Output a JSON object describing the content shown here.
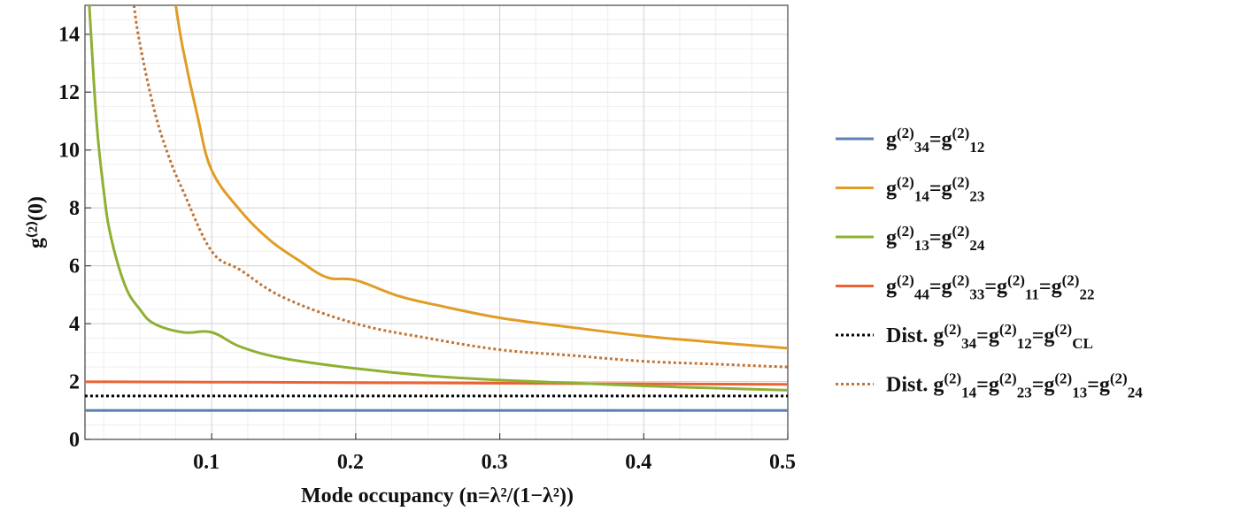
{
  "chart_data": {
    "type": "line",
    "title": "",
    "xlabel": "Mode occupancy (n=λ²/(1−λ²))",
    "ylabel": "g⁽²⁾(0)",
    "xlim": [
      0.012,
      0.5
    ],
    "ylim": [
      0,
      15
    ],
    "x_ticks": [
      {
        "value": 0.1,
        "label": "0.1"
      },
      {
        "value": 0.2,
        "label": "0.2"
      },
      {
        "value": 0.3,
        "label": "0.3"
      },
      {
        "value": 0.4,
        "label": "0.4"
      },
      {
        "value": 0.5,
        "label": "0.5"
      }
    ],
    "y_ticks": [
      {
        "value": 0,
        "label": "0"
      },
      {
        "value": 2,
        "label": "2"
      },
      {
        "value": 4,
        "label": "4"
      },
      {
        "value": 6,
        "label": "6"
      },
      {
        "value": 8,
        "label": "8"
      },
      {
        "value": 10,
        "label": "10"
      },
      {
        "value": 12,
        "label": "12"
      },
      {
        "value": 14,
        "label": "14"
      }
    ],
    "grid": true,
    "legend_position": "right",
    "series": [
      {
        "name": "g(2)34=g(2)12",
        "color": "#5e81b5",
        "dash": "solid",
        "x": [
          0.012,
          0.1,
          0.2,
          0.3,
          0.4,
          0.5
        ],
        "y": [
          1.0,
          1.0,
          1.0,
          1.0,
          1.0,
          1.0
        ]
      },
      {
        "name": "g(2)14=g(2)23",
        "color": "#e19c24",
        "dash": "solid",
        "x": [
          0.075,
          0.08,
          0.09,
          0.1,
          0.12,
          0.14,
          0.16,
          0.18,
          0.2,
          0.23,
          0.26,
          0.3,
          0.35,
          0.4,
          0.45,
          0.5
        ],
        "y": [
          15.0,
          13.5,
          11.2,
          9.3,
          7.9,
          6.9,
          6.2,
          5.6,
          5.5,
          4.95,
          4.6,
          4.2,
          3.87,
          3.57,
          3.35,
          3.15
        ]
      },
      {
        "name": "g(2)13=g(2)24",
        "color": "#8fb032",
        "dash": "solid",
        "x": [
          0.015,
          0.02,
          0.025,
          0.03,
          0.04,
          0.05,
          0.06,
          0.08,
          0.1,
          0.12,
          0.15,
          0.2,
          0.25,
          0.3,
          0.35,
          0.4,
          0.45,
          0.5
        ],
        "y": [
          15.0,
          11.0,
          8.6,
          7.0,
          5.3,
          4.5,
          4.0,
          3.7,
          3.7,
          3.2,
          2.8,
          2.45,
          2.2,
          2.05,
          1.95,
          1.85,
          1.77,
          1.7
        ]
      },
      {
        "name": "g(2)44=g(2)33=g(2)11=g(2)22",
        "color": "#eb6235",
        "dash": "solid",
        "x": [
          0.012,
          0.1,
          0.2,
          0.3,
          0.4,
          0.5
        ],
        "y": [
          1.99,
          1.98,
          1.96,
          1.94,
          1.92,
          1.9
        ]
      },
      {
        "name": "Dist. g(2)34=g(2)12=g(2)CL",
        "color": "#000000",
        "dash": "dotted",
        "x": [
          0.012,
          0.1,
          0.2,
          0.3,
          0.4,
          0.5
        ],
        "y": [
          1.5,
          1.5,
          1.5,
          1.5,
          1.5,
          1.5
        ]
      },
      {
        "name": "Dist. g(2)14=g(2)23=g(2)13=g(2)24",
        "color": "#c07435",
        "dash": "dotted",
        "x": [
          0.046,
          0.05,
          0.06,
          0.07,
          0.08,
          0.1,
          0.12,
          0.15,
          0.2,
          0.25,
          0.3,
          0.35,
          0.4,
          0.45,
          0.5
        ],
        "y": [
          15.0,
          13.7,
          11.4,
          9.8,
          8.6,
          6.5,
          5.85,
          4.9,
          4.0,
          3.5,
          3.1,
          2.9,
          2.7,
          2.6,
          2.5
        ]
      }
    ]
  },
  "legend": [
    {
      "parts": [
        [
          "n",
          "g"
        ],
        [
          "sup",
          "(2)"
        ],
        [
          "sub",
          "34"
        ],
        [
          "n",
          "=g"
        ],
        [
          "sup",
          "(2)"
        ],
        [
          "sub",
          "12"
        ]
      ]
    },
    {
      "parts": [
        [
          "n",
          "g"
        ],
        [
          "sup",
          "(2)"
        ],
        [
          "sub",
          "14"
        ],
        [
          "n",
          "=g"
        ],
        [
          "sup",
          "(2)"
        ],
        [
          "sub",
          "23"
        ]
      ]
    },
    {
      "parts": [
        [
          "n",
          "g"
        ],
        [
          "sup",
          "(2)"
        ],
        [
          "sub",
          "13"
        ],
        [
          "n",
          "=g"
        ],
        [
          "sup",
          "(2)"
        ],
        [
          "sub",
          "24"
        ]
      ]
    },
    {
      "parts": [
        [
          "n",
          "g"
        ],
        [
          "sup",
          "(2)"
        ],
        [
          "sub",
          "44"
        ],
        [
          "n",
          "=g"
        ],
        [
          "sup",
          "(2)"
        ],
        [
          "sub",
          "33"
        ],
        [
          "n",
          "=g"
        ],
        [
          "sup",
          "(2)"
        ],
        [
          "sub",
          "11"
        ],
        [
          "n",
          "=g"
        ],
        [
          "sup",
          "(2)"
        ],
        [
          "sub",
          "22"
        ]
      ]
    },
    {
      "parts": [
        [
          "n",
          "Dist. g"
        ],
        [
          "sup",
          "(2)"
        ],
        [
          "sub",
          "34"
        ],
        [
          "n",
          "=g"
        ],
        [
          "sup",
          "(2)"
        ],
        [
          "sub",
          "12"
        ],
        [
          "n",
          "=g"
        ],
        [
          "sup",
          "(2)"
        ],
        [
          "sub",
          "CL"
        ]
      ]
    },
    {
      "parts": [
        [
          "n",
          "Dist. g"
        ],
        [
          "sup",
          "(2)"
        ],
        [
          "sub",
          "14"
        ],
        [
          "n",
          "=g"
        ],
        [
          "sup",
          "(2)"
        ],
        [
          "sub",
          "23"
        ],
        [
          "n",
          "=g"
        ],
        [
          "sup",
          "(2)"
        ],
        [
          "sub",
          "13"
        ],
        [
          "n",
          "=g"
        ],
        [
          "sup",
          "(2)"
        ],
        [
          "sub",
          "24"
        ]
      ]
    }
  ]
}
